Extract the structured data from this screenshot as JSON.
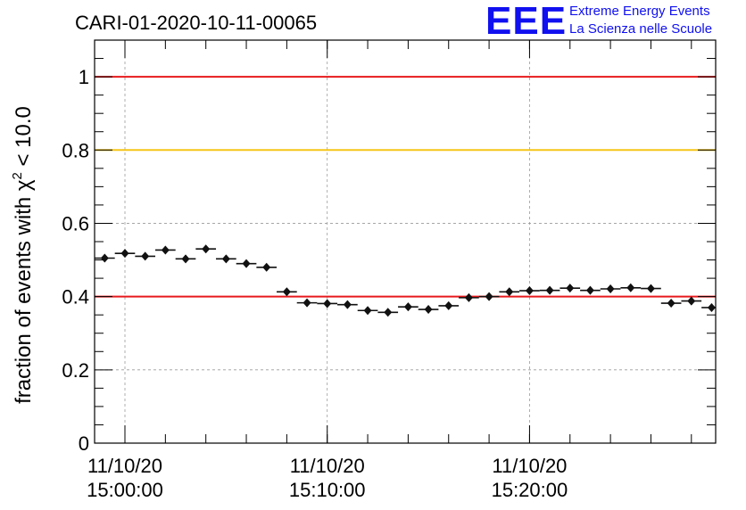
{
  "logo": {
    "mark": "EEE",
    "line1": "Extreme Energy Events",
    "line2": "La Scienza nelle Scuole",
    "color": "#1010f0"
  },
  "chart_data": {
    "type": "scatter",
    "title": "CARI-01-2020-10-11-00065",
    "ylabel": "fraction of events with χ² < 10.0",
    "xlabel": "",
    "ylim": [
      0,
      1.1
    ],
    "yticks": [
      "0",
      "0.2",
      "0.4",
      "0.6",
      "0.8",
      "1"
    ],
    "x_unit": "minutes after 11/10/20 14:58:30",
    "xlim": [
      0,
      30.7
    ],
    "xticks": [
      {
        "x": 1.5,
        "date": "11/10/20",
        "time": "15:00:00"
      },
      {
        "x": 11.5,
        "date": "11/10/20",
        "time": "15:10:00"
      },
      {
        "x": 21.5,
        "date": "11/10/20",
        "time": "15:20:00"
      }
    ],
    "grid": true,
    "bin_width": 1.0,
    "points": [
      {
        "x": 0.5,
        "y": 0.505
      },
      {
        "x": 1.5,
        "y": 0.518
      },
      {
        "x": 2.5,
        "y": 0.51
      },
      {
        "x": 3.5,
        "y": 0.527
      },
      {
        "x": 4.5,
        "y": 0.503
      },
      {
        "x": 5.5,
        "y": 0.53
      },
      {
        "x": 6.5,
        "y": 0.503
      },
      {
        "x": 7.5,
        "y": 0.49
      },
      {
        "x": 8.5,
        "y": 0.48
      },
      {
        "x": 9.5,
        "y": 0.413
      },
      {
        "x": 10.5,
        "y": 0.383
      },
      {
        "x": 11.5,
        "y": 0.381
      },
      {
        "x": 12.5,
        "y": 0.378
      },
      {
        "x": 13.5,
        "y": 0.362
      },
      {
        "x": 14.5,
        "y": 0.357
      },
      {
        "x": 15.5,
        "y": 0.372
      },
      {
        "x": 16.5,
        "y": 0.365
      },
      {
        "x": 17.5,
        "y": 0.375
      },
      {
        "x": 18.5,
        "y": 0.397
      },
      {
        "x": 19.5,
        "y": 0.4
      },
      {
        "x": 20.5,
        "y": 0.413
      },
      {
        "x": 21.5,
        "y": 0.416
      },
      {
        "x": 22.5,
        "y": 0.417
      },
      {
        "x": 23.5,
        "y": 0.423
      },
      {
        "x": 24.5,
        "y": 0.417
      },
      {
        "x": 25.5,
        "y": 0.421
      },
      {
        "x": 26.5,
        "y": 0.424
      },
      {
        "x": 27.5,
        "y": 0.422
      },
      {
        "x": 28.5,
        "y": 0.382
      },
      {
        "x": 29.5,
        "y": 0.388
      },
      {
        "x": 30.5,
        "y": 0.37
      }
    ],
    "error_y": 0.01,
    "reference_lines": [
      {
        "y": 1.0,
        "color": "#e8191c"
      },
      {
        "y": 0.8,
        "color": "#f5c518"
      },
      {
        "y": 0.4,
        "color": "#e8191c"
      }
    ],
    "marker_color": "#111111"
  }
}
